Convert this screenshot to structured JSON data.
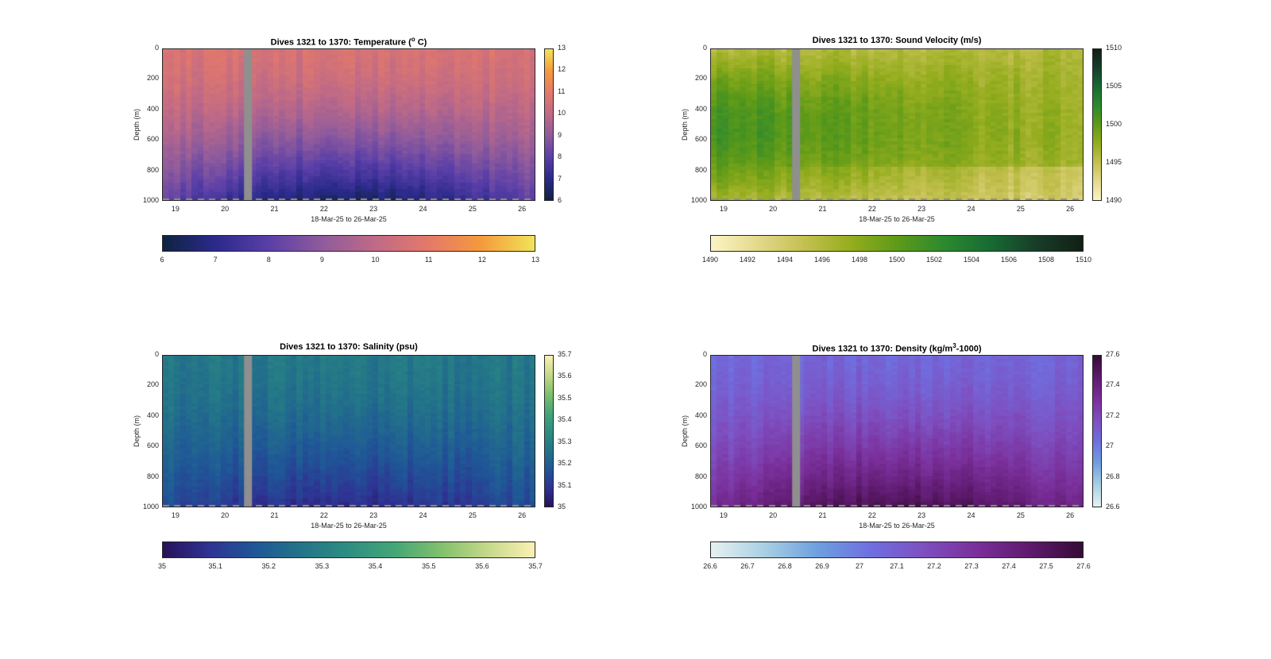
{
  "chart_data": [
    {
      "type": "heatmap",
      "title": "Dives 1321 to 1370: Temperature (° C)",
      "title_main": "Dives 1321 to 1370: Temperature (",
      "title_sup": "o",
      "title_tail": " C)",
      "ylabel": "Depth (m)",
      "xlabel": "18-Mar-25 to 26-Mar-25",
      "x_ticks": [
        "19",
        "20",
        "21",
        "22",
        "23",
        "24",
        "25",
        "26"
      ],
      "y_ticks": [
        "0",
        "200",
        "400",
        "600",
        "800",
        "1000"
      ],
      "ylim": [
        1000,
        0
      ],
      "gap_day": 20.45,
      "colorbar": {
        "min": 6,
        "max": 13,
        "ticks_vertical": [
          "6",
          "7",
          "8",
          "9",
          "10",
          "11",
          "12",
          "13"
        ],
        "ticks_horizontal": [
          "6",
          "7",
          "8",
          "9",
          "10",
          "11",
          "12",
          "13"
        ],
        "colors": [
          "#0f2340",
          "#2b2a8c",
          "#5a3fa8",
          "#8f5b9c",
          "#c06a86",
          "#e4796a",
          "#f59a3c",
          "#f0e45a"
        ]
      },
      "surface_value": 10.6,
      "deep_value": 7.2
    },
    {
      "type": "heatmap",
      "title": "Dives 1321 to 1370: Sound Velocity (m/s)",
      "title_main": "Dives 1321 to 1370: Sound Velocity (m/s)",
      "title_sup": "",
      "title_tail": "",
      "ylabel": "Depth (m)",
      "xlabel": "18-Mar-25 to 26-Mar-25",
      "x_ticks": [
        "19",
        "20",
        "21",
        "22",
        "23",
        "24",
        "25",
        "26"
      ],
      "y_ticks": [
        "0",
        "200",
        "400",
        "600",
        "800",
        "1000"
      ],
      "ylim": [
        1000,
        0
      ],
      "gap_day": 20.45,
      "colorbar": {
        "min": 1490,
        "max": 1510,
        "ticks_vertical": [
          "1490",
          "1495",
          "1500",
          "1505",
          "1510"
        ],
        "ticks_horizontal": [
          "1490",
          "1492",
          "1494",
          "1496",
          "1498",
          "1500",
          "1502",
          "1504",
          "1506",
          "1508",
          "1510"
        ],
        "colors": [
          "#fbf4c4",
          "#e3d98c",
          "#c4c050",
          "#95ad1e",
          "#5e9a18",
          "#2c8a2e",
          "#176b33",
          "#173d28",
          "#121f16"
        ]
      },
      "surface_value": 1494.5,
      "deep_value": 1495.5
    },
    {
      "type": "heatmap",
      "title": "Dives 1321 to 1370: Salinity (psu)",
      "title_main": "Dives 1321 to 1370: Salinity (psu)",
      "title_sup": "",
      "title_tail": "",
      "ylabel": "Depth (m)",
      "xlabel": "18-Mar-25 to 26-Mar-25",
      "x_ticks": [
        "19",
        "20",
        "21",
        "22",
        "23",
        "24",
        "25",
        "26"
      ],
      "y_ticks": [
        "0",
        "200",
        "400",
        "600",
        "800",
        "1000"
      ],
      "ylim": [
        1000,
        0
      ],
      "gap_day": 20.45,
      "colorbar": {
        "min": 35,
        "max": 35.7,
        "ticks_vertical": [
          "35",
          "35.1",
          "35.2",
          "35.3",
          "35.4",
          "35.5",
          "35.6",
          "35.7"
        ],
        "ticks_horizontal": [
          "35",
          "35.1",
          "35.2",
          "35.3",
          "35.4",
          "35.5",
          "35.6",
          "35.7"
        ],
        "colors": [
          "#27125a",
          "#2e3393",
          "#1f5797",
          "#237588",
          "#2e8e82",
          "#45a677",
          "#82c16c",
          "#c6d98a",
          "#fbf0b4"
        ]
      },
      "surface_value": 35.27,
      "deep_value": 35.1
    },
    {
      "type": "heatmap",
      "title": "Dives 1321 to 1370: Density (kg/m³-1000)",
      "title_main": "Dives 1321 to 1370: Density (kg/m",
      "title_sup": "3",
      "title_tail": "-1000)",
      "ylabel": "Depth (m)",
      "xlabel": "18-Mar-25 to 26-Mar-25",
      "x_ticks": [
        "19",
        "20",
        "21",
        "22",
        "23",
        "24",
        "25",
        "26"
      ],
      "y_ticks": [
        "0",
        "200",
        "400",
        "600",
        "800",
        "1000"
      ],
      "ylim": [
        1000,
        0
      ],
      "gap_day": 20.45,
      "colorbar": {
        "min": 26.6,
        "max": 27.6,
        "ticks_vertical": [
          "26.6",
          "26.8",
          "27",
          "27.2",
          "27.4",
          "27.6"
        ],
        "ticks_horizontal": [
          "26.6",
          "26.7",
          "26.8",
          "26.9",
          "27",
          "27.1",
          "27.2",
          "27.3",
          "27.4",
          "27.5",
          "27.6"
        ],
        "colors": [
          "#e6f1f1",
          "#a9d0e3",
          "#6ea0e0",
          "#6f6fe0",
          "#7e4fc0",
          "#7a2f9a",
          "#5e1a6e",
          "#350c35"
        ]
      },
      "surface_value": 27.07,
      "deep_value": 27.45
    }
  ]
}
